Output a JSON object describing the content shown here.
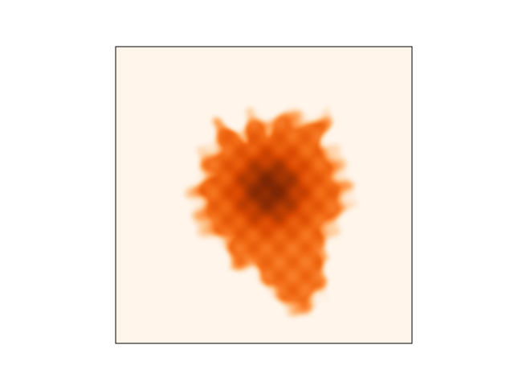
{
  "chart_data": {
    "type": "heatmap",
    "colormap": "Oranges",
    "colormap_stops": [
      "#fff5eb",
      "#fee6ce",
      "#fdd0a2",
      "#fdae6b",
      "#fd8d3c",
      "#f16913",
      "#d94801",
      "#a63603",
      "#7f2704"
    ],
    "background_color": "#fff5eb",
    "xticks": [],
    "yticks": [],
    "grid": false,
    "legend": "none",
    "blob": {
      "center": [
        0.52,
        0.48
      ],
      "radii": [
        0.27,
        0.25,
        0.26,
        0.24,
        0.32,
        0.26,
        0.28,
        0.22,
        0.27,
        0.21,
        0.29,
        0.24,
        0.26,
        0.23,
        0.27,
        0.25,
        0.27,
        0.26,
        0.24,
        0.29,
        0.28,
        0.34,
        0.44,
        0.4,
        0.3,
        0.26,
        0.25,
        0.27
      ],
      "core_center": [
        0.52,
        0.48
      ],
      "core_radius": 0.12,
      "edge_softness": 0.045
    }
  }
}
